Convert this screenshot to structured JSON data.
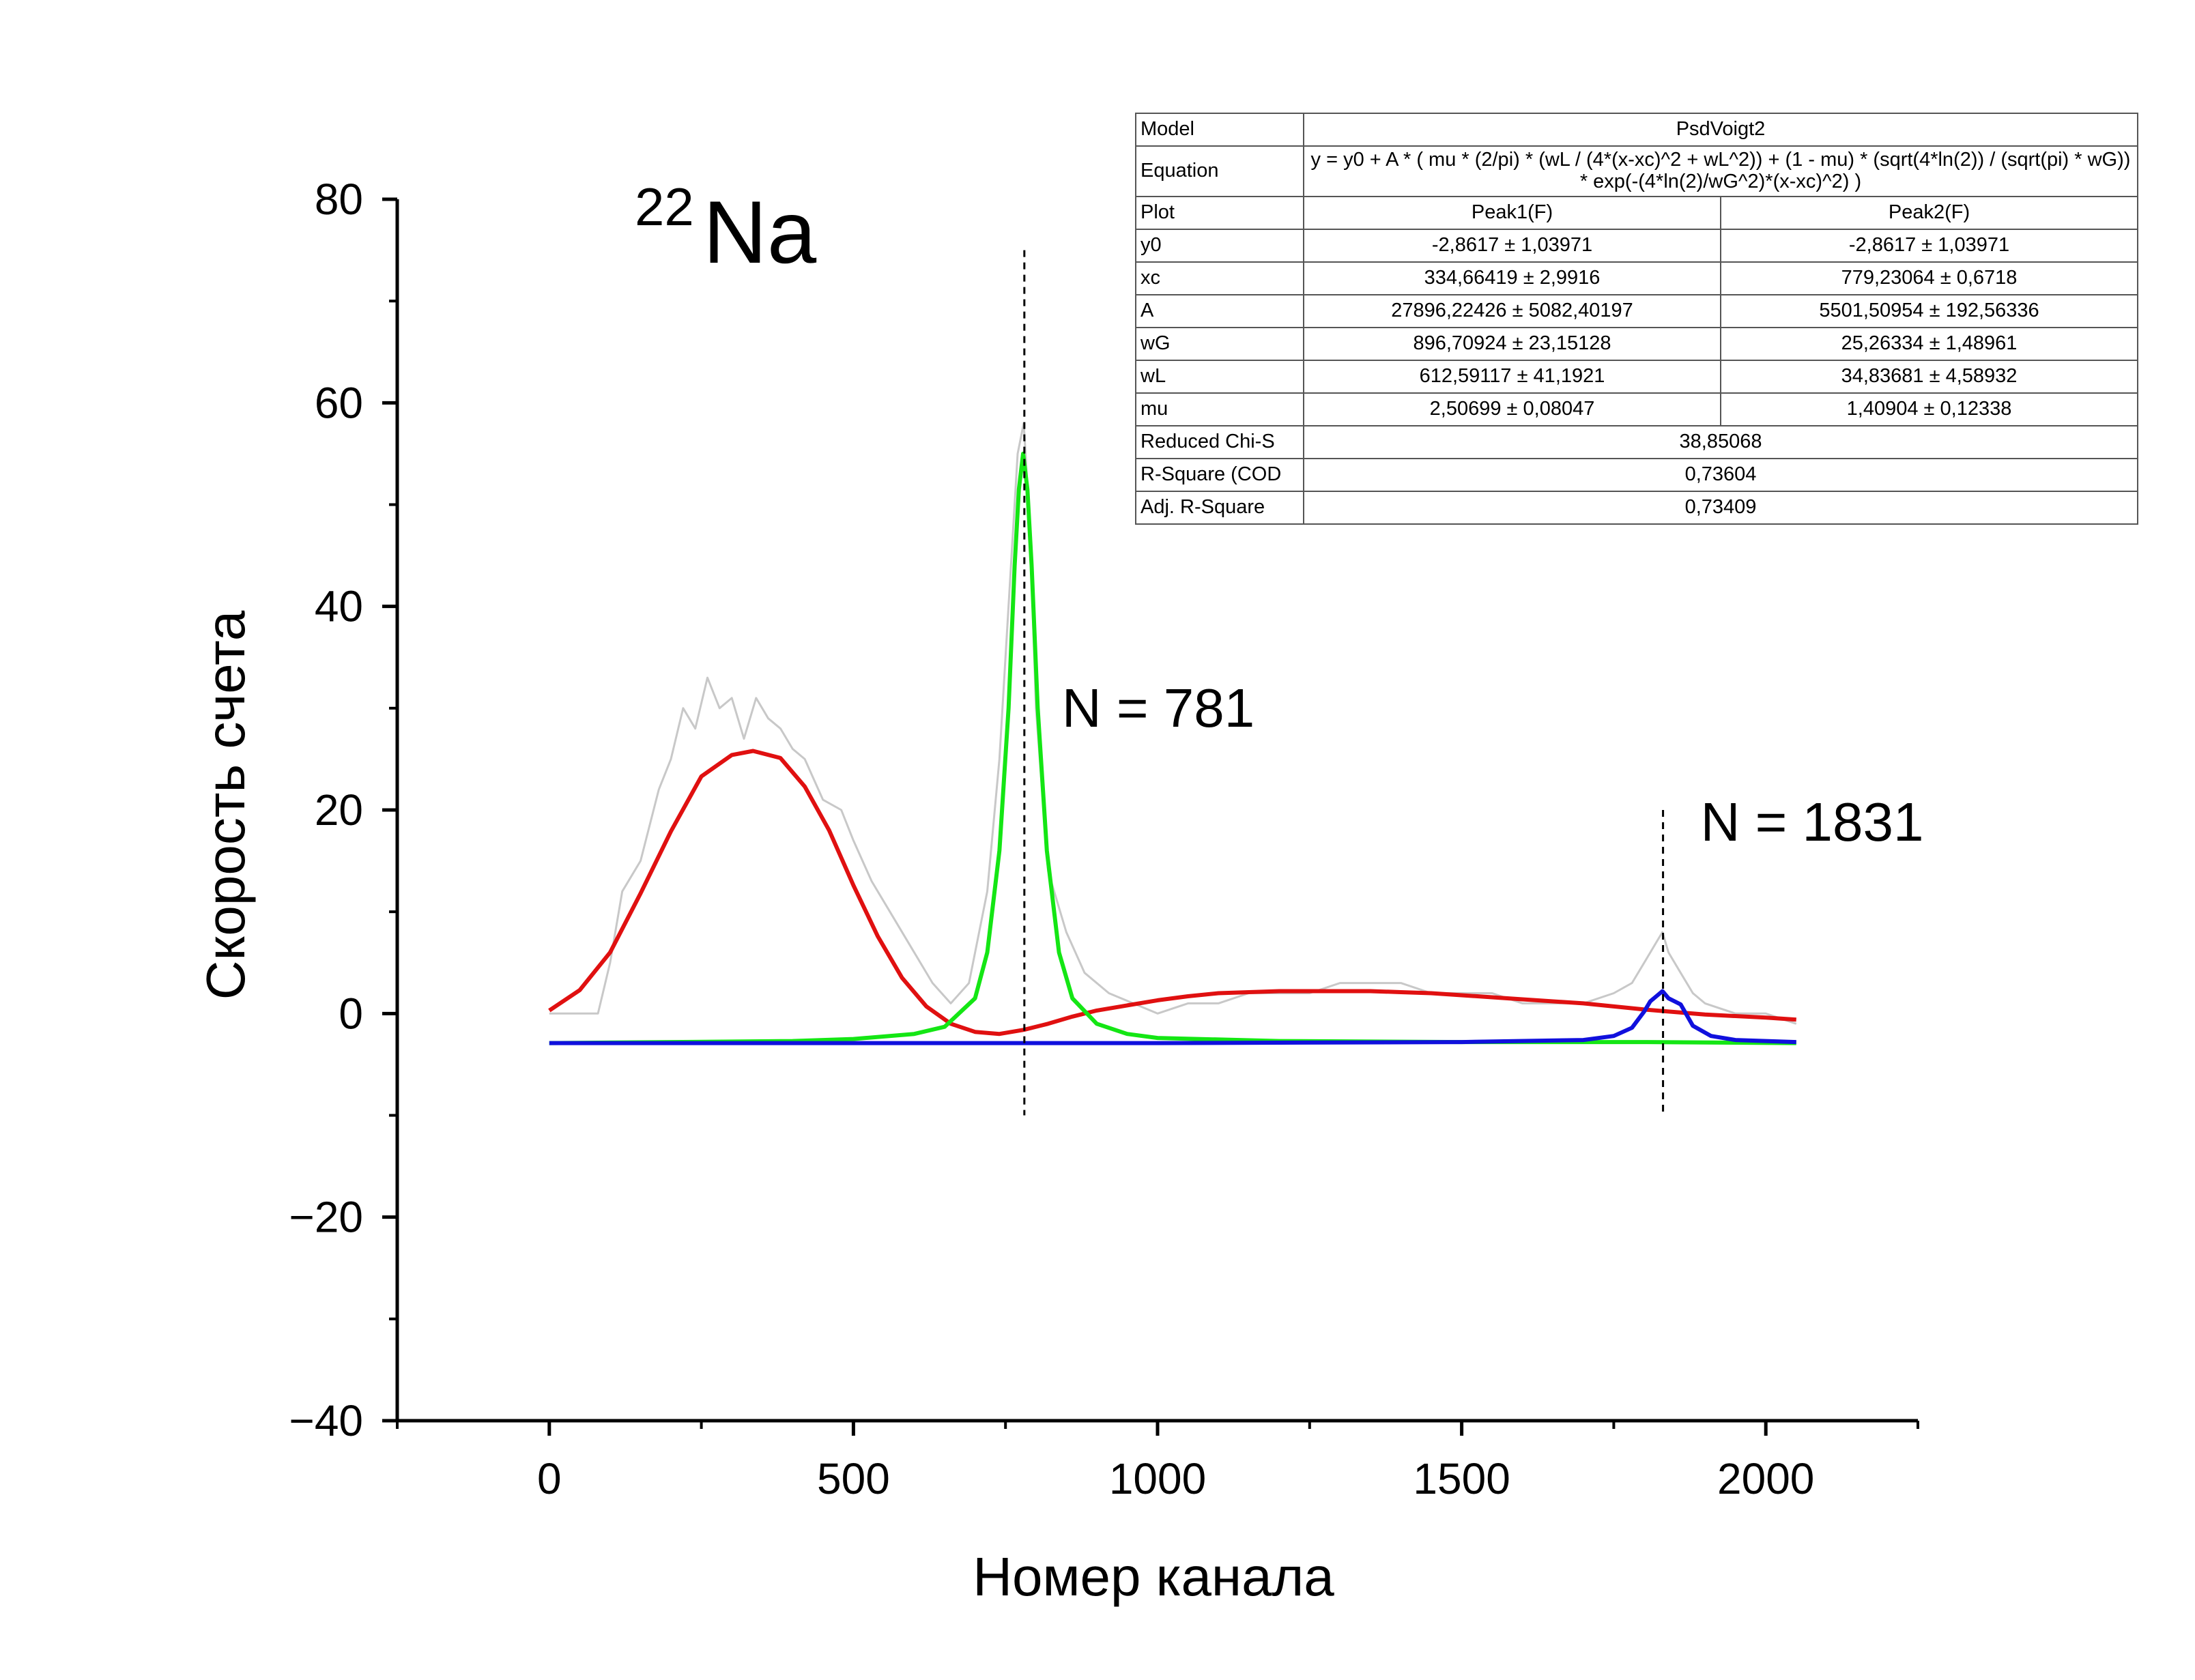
{
  "figure": {
    "title_main": "Na",
    "title_superscript": "22"
  },
  "chart_data": {
    "type": "line",
    "xlabel": "Номер канала",
    "ylabel": "Скорость счета",
    "xlim": [
      -250,
      2250
    ],
    "ylim": [
      -40,
      80
    ],
    "xticks": [
      0,
      500,
      1000,
      1500,
      2000
    ],
    "yticks": [
      -40,
      -20,
      0,
      20,
      40,
      60,
      80
    ],
    "xtick_labels": [
      "0",
      "500",
      "1000",
      "1500",
      "2000"
    ],
    "ytick_labels": [
      "−40",
      "−20",
      "0",
      "20",
      "40",
      "60",
      "80"
    ],
    "grid": false,
    "colors": {
      "raw": "#c8c8c8",
      "peak1": "#e01010",
      "peak2": "#14e614",
      "peak3": "#1010dd",
      "marker": "#000000"
    },
    "series": [
      {
        "key": "raw",
        "x": [
          0,
          40,
          80,
          100,
          120,
          150,
          180,
          200,
          220,
          240,
          260,
          280,
          300,
          320,
          340,
          360,
          380,
          400,
          420,
          450,
          480,
          500,
          530,
          560,
          600,
          630,
          660,
          690,
          720,
          740,
          760,
          770,
          780,
          790,
          800,
          820,
          850,
          880,
          920,
          960,
          1000,
          1050,
          1100,
          1150,
          1200,
          1250,
          1300,
          1350,
          1400,
          1450,
          1500,
          1550,
          1600,
          1650,
          1700,
          1750,
          1780,
          1800,
          1820,
          1830,
          1840,
          1860,
          1880,
          1900,
          1950,
          2000,
          2050
        ],
        "y": [
          0,
          0,
          0,
          5,
          12,
          15,
          22,
          25,
          30,
          28,
          33,
          30,
          31,
          27,
          31,
          29,
          28,
          26,
          25,
          21,
          20,
          17,
          13,
          10,
          6,
          3,
          1,
          3,
          12,
          25,
          45,
          55,
          58,
          48,
          30,
          14,
          8,
          4,
          2,
          1,
          0,
          1,
          1,
          2,
          2,
          2,
          3,
          3,
          3,
          2,
          2,
          2,
          1,
          1,
          1,
          2,
          3,
          5,
          7,
          8,
          6,
          4,
          2,
          1,
          0,
          0,
          -1
        ]
      },
      {
        "key": "peak1",
        "x": [
          0,
          50,
          100,
          150,
          200,
          250,
          300,
          335,
          380,
          420,
          460,
          500,
          540,
          580,
          620,
          660,
          700,
          740,
          780,
          820,
          860,
          900,
          950,
          1000,
          1050,
          1100,
          1150,
          1200,
          1250,
          1300,
          1350,
          1400,
          1450,
          1500,
          1600,
          1700,
          1800,
          1900,
          2000,
          2050
        ],
        "y": [
          0.3,
          2.3,
          6.0,
          11.8,
          17.9,
          23.3,
          25.4,
          25.8,
          25.1,
          22.3,
          18.0,
          12.6,
          7.6,
          3.5,
          0.7,
          -1.0,
          -1.8,
          -2.0,
          -1.6,
          -1.0,
          -0.3,
          0.3,
          0.8,
          1.3,
          1.7,
          2.0,
          2.1,
          2.2,
          2.2,
          2.2,
          2.2,
          2.1,
          2.0,
          1.8,
          1.4,
          1.0,
          0.4,
          -0.1,
          -0.4,
          -0.6
        ]
      },
      {
        "key": "peak2",
        "x": [
          0,
          200,
          400,
          500,
          600,
          650,
          700,
          720,
          740,
          755,
          765,
          772,
          779,
          786,
          793,
          803,
          818,
          838,
          860,
          900,
          950,
          1000,
          1200,
          1500,
          1800,
          2050
        ],
        "y": [
          -2.9,
          -2.8,
          -2.7,
          -2.5,
          -2.0,
          -1.3,
          1.5,
          6.0,
          16.0,
          30.0,
          44.0,
          51.5,
          55.0,
          51.5,
          44.0,
          30.0,
          16.0,
          6.0,
          1.5,
          -1.0,
          -2.0,
          -2.4,
          -2.7,
          -2.8,
          -2.8,
          -2.9
        ]
      },
      {
        "key": "peak3",
        "x": [
          0,
          1000,
          1500,
          1700,
          1750,
          1780,
          1800,
          1810,
          1820,
          1830,
          1840,
          1850,
          1860,
          1880,
          1910,
          1950,
          2000,
          2050
        ],
        "y": [
          -2.9,
          -2.9,
          -2.8,
          -2.6,
          -2.2,
          -1.4,
          0.2,
          1.2,
          1.7,
          2.2,
          1.5,
          1.2,
          0.9,
          -1.2,
          -2.2,
          -2.6,
          -2.7,
          -2.8
        ]
      }
    ],
    "markers": [
      {
        "x": 781,
        "label": "N = 781",
        "y_from": -10,
        "y_to": 75
      },
      {
        "x": 1831,
        "label": "N = 1831",
        "y_from": -10,
        "y_to": 20
      }
    ]
  },
  "fit_table": {
    "rows": [
      {
        "header": "Model",
        "span": "PsdVoigt2"
      },
      {
        "header": "Equation",
        "span": "y = y0 + A * ( mu * (2/pi) * (wL / (4*(x-xc)^2 + wL^2)) + (1 - mu) * (sqrt(4*ln(2)) / (sqrt(pi) * wG)) * exp(-(4*ln(2)/wG^2)*(x-xc)^2) )"
      },
      {
        "header": "Plot",
        "cells": [
          "Peak1(F)",
          "Peak2(F)"
        ]
      },
      {
        "header": "y0",
        "cells": [
          "-2,8617 ± 1,03971",
          "-2,8617 ± 1,03971"
        ]
      },
      {
        "header": "xc",
        "cells": [
          "334,66419 ± 2,9916",
          "779,23064 ± 0,6718"
        ]
      },
      {
        "header": "A",
        "cells": [
          "27896,22426 ± 5082,40197",
          "5501,50954 ± 192,56336"
        ]
      },
      {
        "header": "wG",
        "cells": [
          "896,70924 ± 23,15128",
          "25,26334 ± 1,48961"
        ]
      },
      {
        "header": "wL",
        "cells": [
          "612,59117 ± 41,1921",
          "34,83681 ± 4,58932"
        ]
      },
      {
        "header": "mu",
        "cells": [
          "2,50699 ± 0,08047",
          "1,40904 ± 0,12338"
        ]
      },
      {
        "header": "Reduced Chi-S",
        "span": "38,85068"
      },
      {
        "header": "R-Square (COD",
        "span": "0,73604"
      },
      {
        "header": "Adj. R-Square",
        "span": "0,73409"
      }
    ]
  }
}
